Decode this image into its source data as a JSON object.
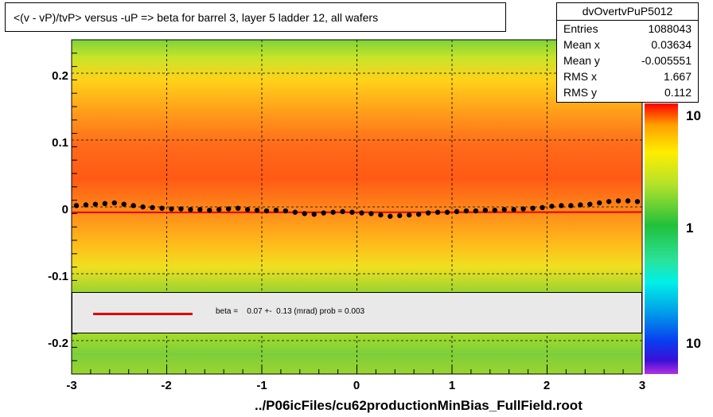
{
  "title": "<(v - vP)/tvP> versus  -uP => beta for barrel 3, layer 5 ladder 12, all wafers",
  "stats": {
    "name": "dvOvertvPuP5012",
    "rows": [
      {
        "label": "Entries",
        "value": "1088043"
      },
      {
        "label": "Mean x",
        "value": "0.03634"
      },
      {
        "label": "Mean y",
        "value": "-0.005551"
      },
      {
        "label": "RMS x",
        "value": "1.667"
      },
      {
        "label": "RMS y",
        "value": "0.112"
      }
    ]
  },
  "fit_legend": "beta =    0.07 +-  0.13 (mrad) prob = 0.003",
  "x_axis_label": "../P06icFiles/cu62productionMinBias_FullField.root",
  "x_ticks": [
    "-3",
    "-2",
    "-1",
    "0",
    "1",
    "2",
    "3"
  ],
  "y_ticks": [
    "0.2",
    "0.1",
    "0",
    "-0.1",
    "-0.2"
  ],
  "z_ticks": [
    "10",
    "1",
    "10"
  ],
  "colors": {
    "fit_line": "#e00000",
    "points": "#000000",
    "grid": "#000000",
    "legend_bg": "#e9e9e9"
  },
  "chart_data": {
    "type": "heatmap",
    "title": "<(v - vP)/tvP> versus  -uP => beta for barrel 3, layer 5 ladder 12, all wafers",
    "xlabel": "../P06icFiles/cu62productionMinBias_FullField.root",
    "ylabel": "",
    "xlim": [
      -3,
      3
    ],
    "ylim": [
      -0.25,
      0.25
    ],
    "grid": true,
    "z_scale": "log",
    "profile_points": {
      "x": [
        -2.95,
        -2.85,
        -2.75,
        -2.65,
        -2.55,
        -2.45,
        -2.35,
        -2.25,
        -2.15,
        -2.05,
        -1.95,
        -1.85,
        -1.75,
        -1.65,
        -1.55,
        -1.45,
        -1.35,
        -1.25,
        -1.15,
        -1.05,
        -0.95,
        -0.85,
        -0.75,
        -0.65,
        -0.55,
        -0.45,
        -0.35,
        -0.25,
        -0.15,
        -0.05,
        0.05,
        0.15,
        0.25,
        0.35,
        0.45,
        0.55,
        0.65,
        0.75,
        0.85,
        0.95,
        1.05,
        1.15,
        1.25,
        1.35,
        1.45,
        1.55,
        1.65,
        1.75,
        1.85,
        1.95,
        2.05,
        2.15,
        2.25,
        2.35,
        2.45,
        2.55,
        2.65,
        2.75,
        2.85,
        2.95
      ],
      "y": [
        0.002,
        0.003,
        0.004,
        0.005,
        0.006,
        0.004,
        0.002,
        0.0,
        -0.001,
        -0.002,
        -0.003,
        -0.003,
        -0.004,
        -0.004,
        -0.005,
        -0.004,
        -0.003,
        -0.002,
        -0.004,
        -0.005,
        -0.006,
        -0.005,
        -0.006,
        -0.008,
        -0.01,
        -0.011,
        -0.009,
        -0.008,
        -0.007,
        -0.008,
        -0.009,
        -0.01,
        -0.012,
        -0.014,
        -0.013,
        -0.012,
        -0.011,
        -0.009,
        -0.008,
        -0.008,
        -0.007,
        -0.006,
        -0.006,
        -0.005,
        -0.005,
        -0.004,
        -0.004,
        -0.003,
        -0.002,
        -0.001,
        0.001,
        0.002,
        0.002,
        0.003,
        0.004,
        0.006,
        0.008,
        0.009,
        0.009,
        0.008
      ]
    },
    "fit": {
      "label": "beta =    0.07 +-  0.13 (mrad) prob = 0.003",
      "slope": 7e-05,
      "intercept": -0.008
    }
  }
}
